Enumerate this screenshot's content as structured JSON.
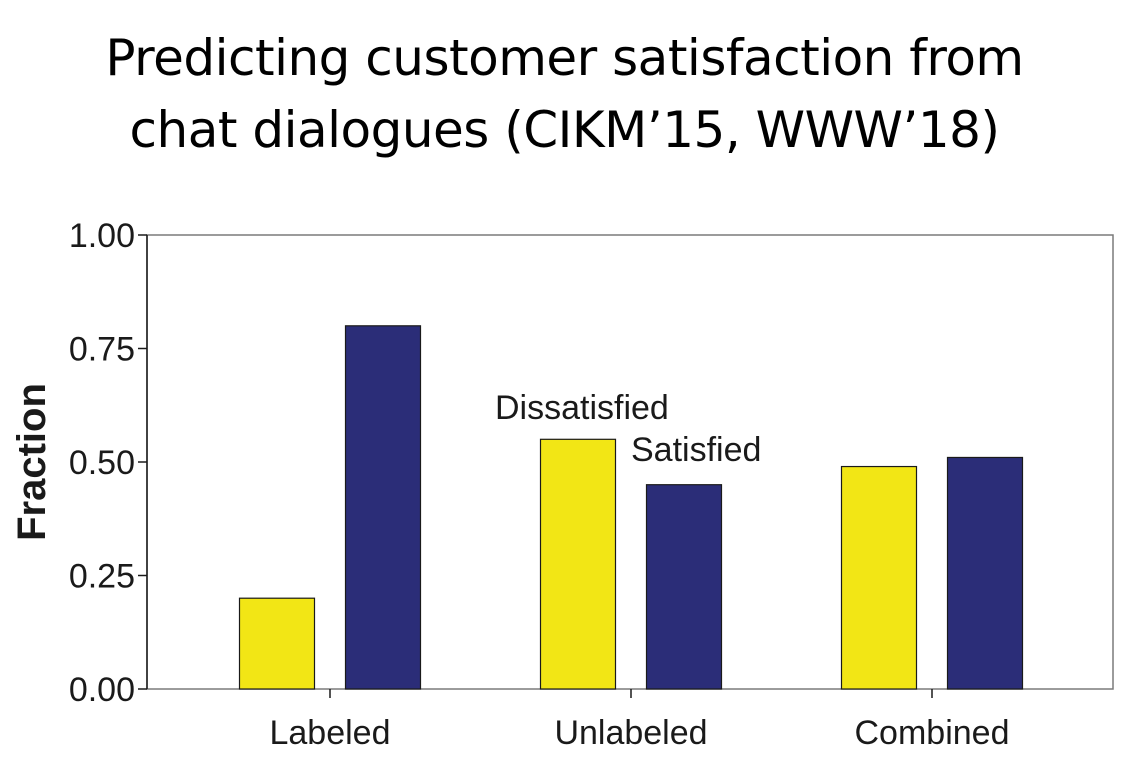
{
  "slide": {
    "title_line1": "Predicting customer satisfaction from",
    "title_line2": "chat dialogues (CIKM’15, WWW’18)"
  },
  "chart_data": {
    "type": "bar",
    "title": "",
    "xlabel": "",
    "ylabel": "Fraction",
    "ylim": [
      0,
      1
    ],
    "yticks": [
      "0.00",
      "0.25",
      "0.50",
      "0.75",
      "1.00"
    ],
    "ytick_values": [
      0,
      0.25,
      0.5,
      0.75,
      1.0
    ],
    "categories": [
      "Labeled",
      "Unlabeled",
      "Combined"
    ],
    "series": [
      {
        "name": "Dissatisfied",
        "values": [
          0.2,
          0.55,
          0.49
        ],
        "color": "#f2e615"
      },
      {
        "name": "Satisfied",
        "values": [
          0.8,
          0.45,
          0.51
        ],
        "color": "#2b2d78"
      }
    ],
    "grid": false,
    "legend": "in-plot labels above Unlabeled bars"
  }
}
